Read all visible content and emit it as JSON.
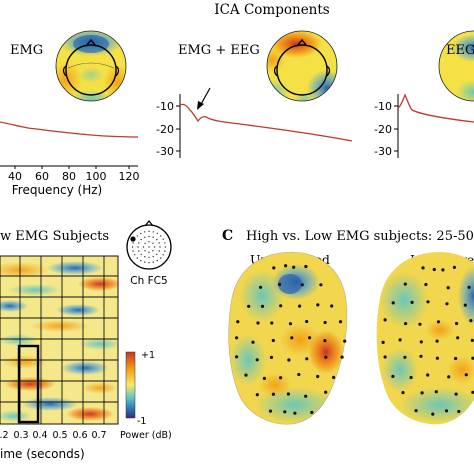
{
  "title": "ICA Components",
  "panel_a": {
    "labels": [
      "EMG",
      "EMG + EEG",
      "EEG"
    ],
    "xlabel": "Frequency (Hz)",
    "xticks": [
      "40",
      "60",
      "80",
      "100",
      "120"
    ],
    "yticks": [
      "-10",
      "-20",
      "-30"
    ]
  },
  "panel_b": {
    "title_fragment": "w EMG Subjects",
    "electrode_label": "Ch FC5",
    "xlabel": "ime (seconds)",
    "xticks": [
      ".2",
      "0.3",
      "0.4",
      "0.5",
      "0.6",
      "0.7"
    ],
    "colorbar_max": "+1",
    "colorbar_min": "-1",
    "colorbar_label": "Power (dB)"
  },
  "panel_c": {
    "letter": "C",
    "title": "High vs. Low EMG subjects: 25-50Hz",
    "maps": [
      "Uncorrected",
      "ICA-Correct"
    ]
  },
  "colors": {
    "spectrum_line": "#c0392b",
    "highlight_box": "#000000",
    "map_blue": "#2c7bb6",
    "map_red": "#d7191c",
    "map_yellow": "#f4e842"
  }
}
